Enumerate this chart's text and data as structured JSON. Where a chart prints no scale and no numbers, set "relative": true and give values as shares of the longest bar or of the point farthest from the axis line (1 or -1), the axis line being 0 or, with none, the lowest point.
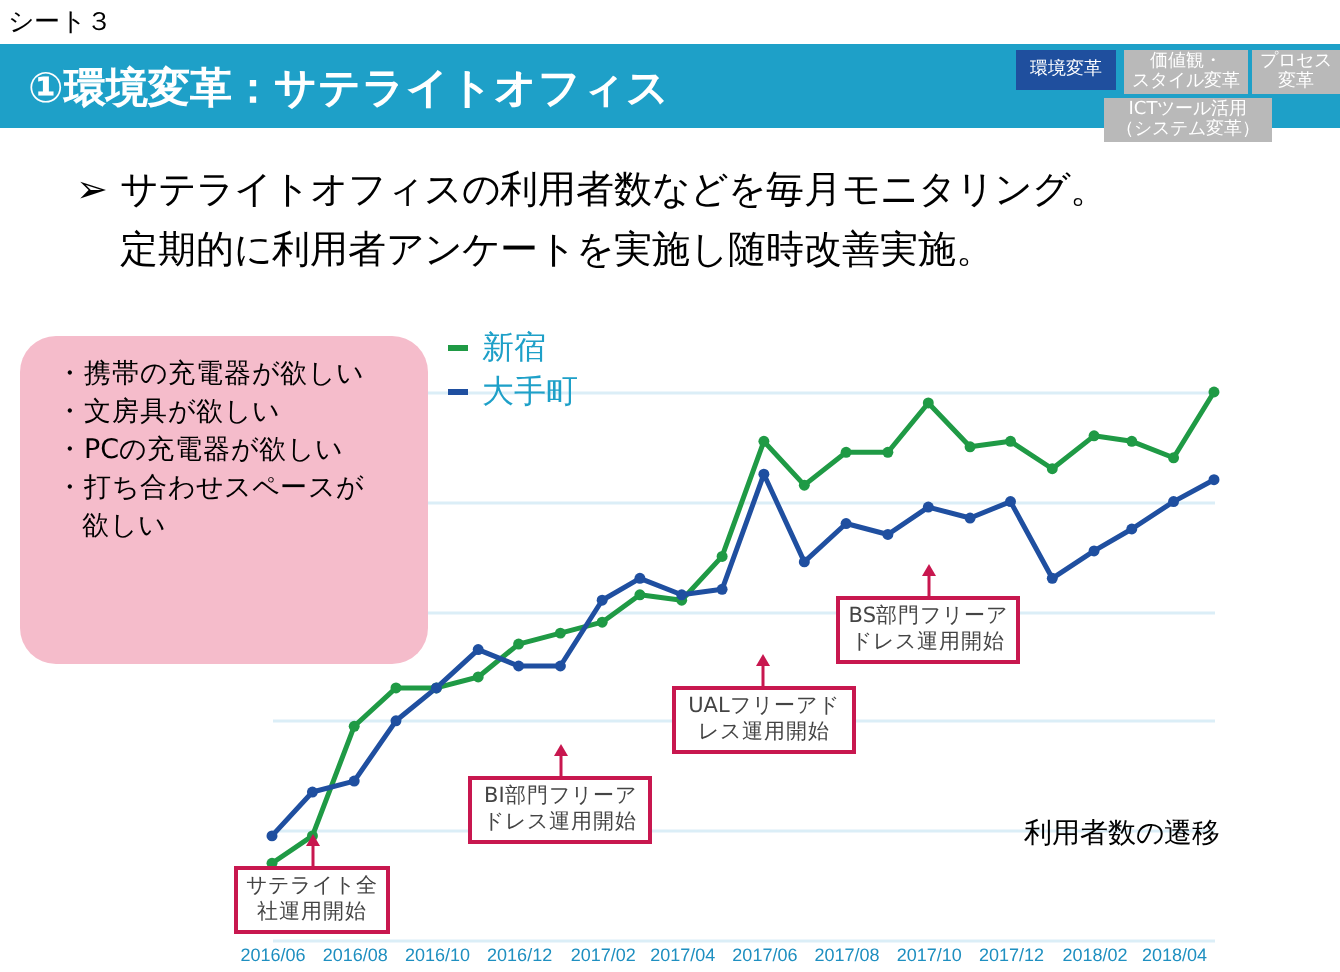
{
  "chart_data": {
    "type": "line",
    "title": "①環境変革：サテライトオフィス",
    "subtitle": "➢ サテライトオフィスの利用者数などを毎月モニタリング。定期的に利用者アンケートを実施し随時改善実施。",
    "x": [
      "2016-06",
      "2016-07",
      "2016-08",
      "2016-09",
      "2016-10",
      "2016-11",
      "2016-12",
      "2017-01",
      "2017-02",
      "2017-03",
      "2017-04",
      "2017-05",
      "2017-06",
      "2017-07",
      "2017-08",
      "2017-09",
      "2017-10",
      "2017-11",
      "2017-12",
      "2018-01",
      "2018-02",
      "2018-03",
      "2018-04",
      "2018-05"
    ],
    "xlim": [
      "2016-06",
      "2018-05"
    ],
    "xticks": [
      {
        "value": "2016-06",
        "label": "2016/06"
      },
      {
        "value": "2016-08",
        "label": "2016/08"
      },
      {
        "value": "2016-10",
        "label": "2016/10"
      },
      {
        "value": "2016-12",
        "label": "2016/12"
      },
      {
        "value": "2017-02",
        "label": "2017/02"
      },
      {
        "value": "2017-04",
        "label": "2017/04"
      },
      {
        "value": "2017-06",
        "label": "2017/06"
      },
      {
        "value": "2017-08",
        "label": "2017/08"
      },
      {
        "value": "2017-10",
        "label": "2017/10"
      },
      {
        "value": "2017-12",
        "label": "2017/12"
      },
      {
        "value": "2018-02",
        "label": "2018/02"
      },
      {
        "value": "2018-04",
        "label": "2018/04"
      }
    ],
    "relative": true,
    "series": [
      {
        "name": "新宿",
        "color": "#1f9a45",
        "values": [
          0.14,
          0.19,
          0.39,
          0.46,
          0.46,
          0.48,
          0.54,
          0.56,
          0.58,
          0.63,
          0.62,
          0.7,
          0.91,
          0.83,
          0.89,
          0.89,
          0.98,
          0.9,
          0.91,
          0.86,
          0.92,
          0.91,
          0.88,
          1.0
        ]
      },
      {
        "name": "大手町",
        "color": "#1f4fa0",
        "values": [
          0.19,
          0.27,
          0.29,
          0.4,
          0.46,
          0.53,
          0.5,
          0.5,
          0.62,
          0.66,
          0.63,
          0.64,
          0.85,
          0.69,
          0.76,
          0.74,
          0.79,
          0.77,
          0.8,
          0.66,
          0.71,
          0.75,
          0.8,
          0.84
        ]
      }
    ],
    "marker": "circle",
    "grid": "y",
    "legend": "top left",
    "annotations": [
      "シート３",
      "環境変革",
      "価値観・スタイル変革",
      "プロセス変革",
      "ICTツール活用（システム変革）",
      "利用者数の遷移",
      "・携帯の充電器が欲しい",
      "・文房具が欲しい",
      "・PCの充電器が欲しい",
      "・打ち合わせスペースが欲しい",
      {
        "text": "サテライト全社運用開始",
        "x": "2016-07"
      },
      {
        "text": "BI部門フリーアドレス運用開始",
        "x": "2017-01"
      },
      {
        "text": "UALフリーアドレス運用開始",
        "x": "2017-06"
      },
      {
        "text": "BS部門フリーアドレス運用開始",
        "x": "2017-10"
      }
    ]
  }
}
